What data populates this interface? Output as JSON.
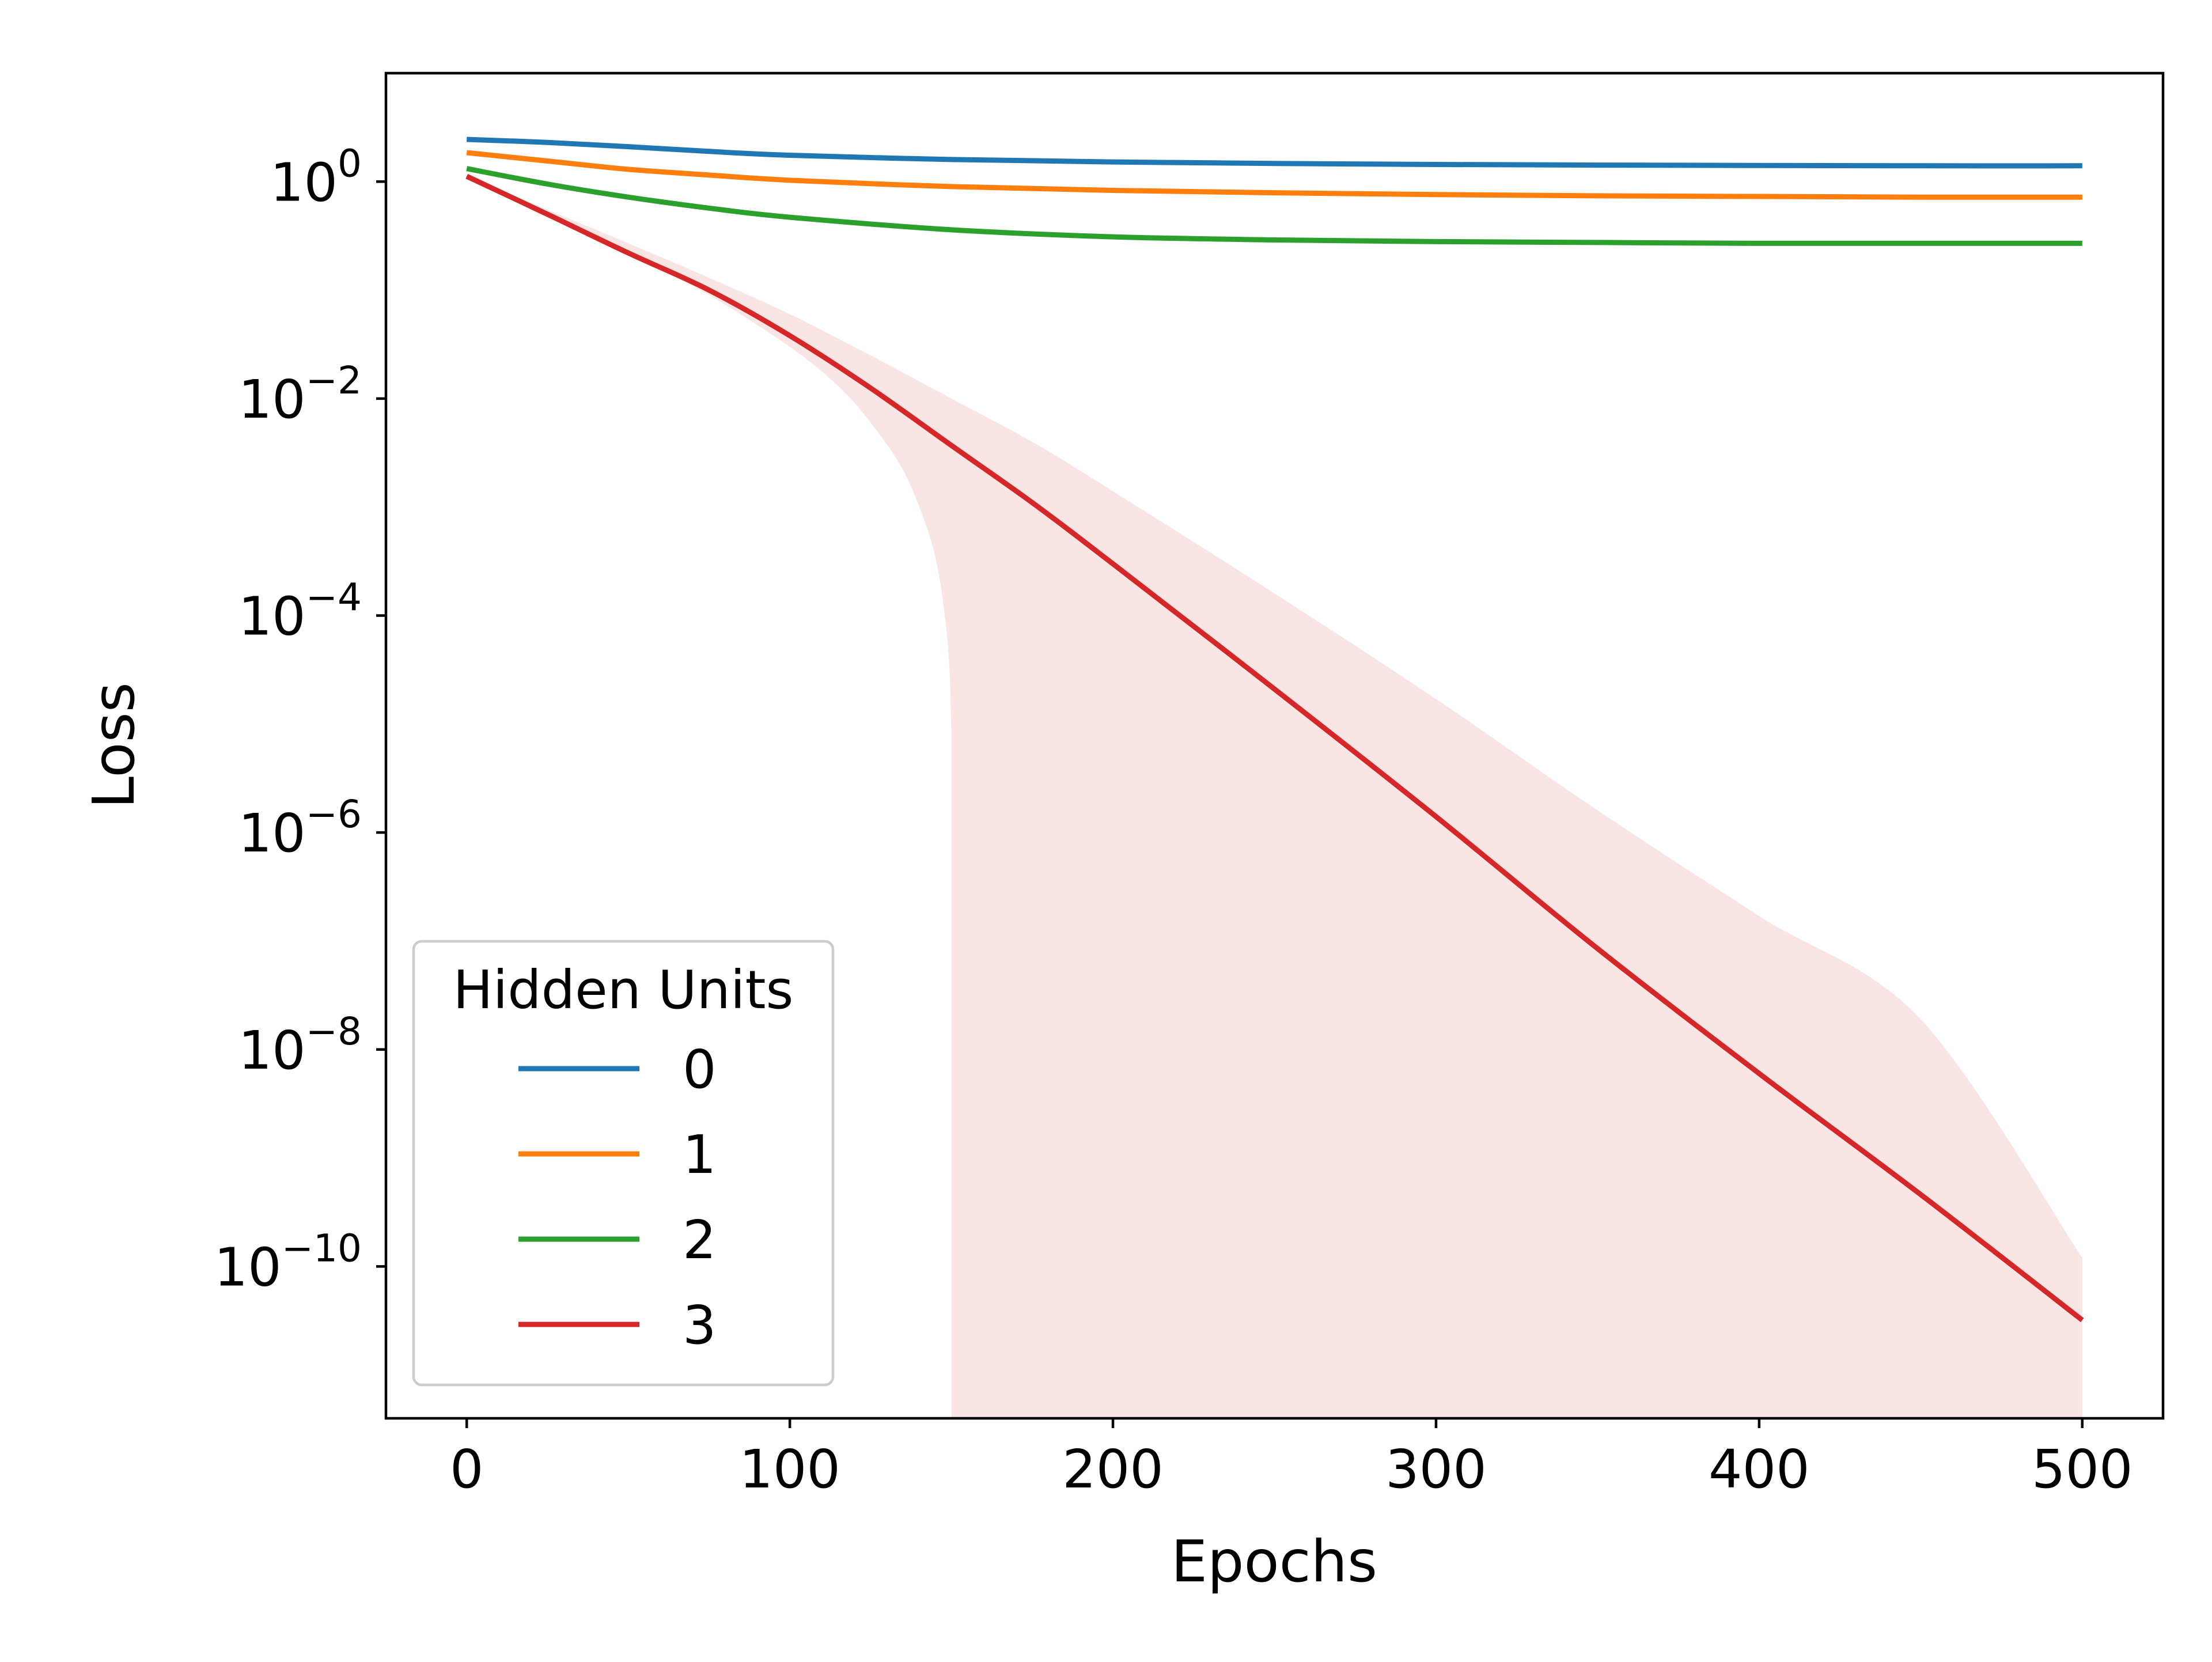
{
  "chart_data": {
    "type": "line",
    "title": "",
    "xlabel": "Epochs",
    "ylabel": "Loss",
    "x_scale": "linear",
    "y_scale": "log",
    "xlim": [
      -25,
      525
    ],
    "ylim_exponent": [
      -11.4,
      1.0
    ],
    "x_ticks": [
      {
        "value": 0,
        "label": "0"
      },
      {
        "value": 100,
        "label": "100"
      },
      {
        "value": 200,
        "label": "200"
      },
      {
        "value": 300,
        "label": "300"
      },
      {
        "value": 400,
        "label": "400"
      },
      {
        "value": 500,
        "label": "500"
      }
    ],
    "y_ticks": [
      {
        "exponent": 0,
        "base": "10",
        "sup": "0"
      },
      {
        "exponent": -2,
        "base": "10",
        "sup": "−2"
      },
      {
        "exponent": -4,
        "base": "10",
        "sup": "−4"
      },
      {
        "exponent": -6,
        "base": "10",
        "sup": "−6"
      },
      {
        "exponent": -8,
        "base": "10",
        "sup": "−8"
      },
      {
        "exponent": -10,
        "base": "10",
        "sup": "−10"
      }
    ],
    "grid": false,
    "legend": {
      "title": "Hidden Units",
      "placement": "lower-left"
    },
    "series": [
      {
        "name": "0",
        "color": "#1f77b4",
        "points": [
          [
            0,
            2.45
          ],
          [
            25,
            2.3
          ],
          [
            50,
            2.1
          ],
          [
            75,
            1.9
          ],
          [
            100,
            1.75
          ],
          [
            150,
            1.6
          ],
          [
            200,
            1.52
          ],
          [
            250,
            1.47
          ],
          [
            300,
            1.44
          ],
          [
            350,
            1.42
          ],
          [
            400,
            1.41
          ],
          [
            450,
            1.4
          ],
          [
            500,
            1.4
          ]
        ]
      },
      {
        "name": "1",
        "color": "#ff7f0e",
        "points": [
          [
            0,
            1.85
          ],
          [
            25,
            1.55
          ],
          [
            50,
            1.3
          ],
          [
            75,
            1.15
          ],
          [
            100,
            1.03
          ],
          [
            150,
            0.9
          ],
          [
            200,
            0.83
          ],
          [
            250,
            0.79
          ],
          [
            300,
            0.76
          ],
          [
            350,
            0.74
          ],
          [
            400,
            0.73
          ],
          [
            450,
            0.72
          ],
          [
            500,
            0.72
          ]
        ]
      },
      {
        "name": "2",
        "color": "#2ca02c",
        "points": [
          [
            0,
            1.32
          ],
          [
            25,
            0.95
          ],
          [
            50,
            0.72
          ],
          [
            75,
            0.57
          ],
          [
            100,
            0.47
          ],
          [
            150,
            0.36
          ],
          [
            200,
            0.31
          ],
          [
            250,
            0.29
          ],
          [
            300,
            0.28
          ],
          [
            350,
            0.275
          ],
          [
            400,
            0.27
          ],
          [
            450,
            0.27
          ],
          [
            500,
            0.27
          ]
        ]
      },
      {
        "name": "3",
        "color": "#d62728",
        "points": [
          [
            0,
            1.12
          ],
          [
            25,
            0.5
          ],
          [
            50,
            0.22
          ],
          [
            75,
            0.1
          ],
          [
            100,
            0.038
          ],
          [
            125,
            0.0125
          ],
          [
            150,
            0.0037
          ],
          [
            175,
            0.0011
          ],
          [
            200,
            0.0003
          ],
          [
            250,
            2.1e-05
          ],
          [
            300,
            1.4e-06
          ],
          [
            350,
            8.5e-08
          ],
          [
            400,
            6e-09
          ],
          [
            450,
            4.6e-10
          ],
          [
            500,
            3.2e-11
          ]
        ],
        "band": {
          "color": "#d62728",
          "upper": [
            [
              0,
              1.12
            ],
            [
              25,
              0.55
            ],
            [
              50,
              0.27
            ],
            [
              75,
              0.13
            ],
            [
              100,
              0.06
            ],
            [
              125,
              0.025
            ],
            [
              150,
              0.01
            ],
            [
              175,
              0.004
            ],
            [
              200,
              0.0014
            ],
            [
              250,
              0.00016
            ],
            [
              300,
              1.7e-05
            ],
            [
              350,
              1.6e-06
            ],
            [
              400,
              1.7e-07
            ],
            [
              450,
              1.9e-08
            ],
            [
              500,
              1.2e-10
            ]
          ],
          "lower": [
            [
              0,
              1.12
            ],
            [
              25,
              0.5
            ],
            [
              50,
              0.22
            ],
            [
              75,
              0.09
            ],
            [
              100,
              0.03
            ],
            [
              115,
              0.013
            ],
            [
              125,
              0.006
            ],
            [
              135,
              0.0022
            ],
            [
              142,
              0.0007
            ],
            [
              146,
              0.00025
            ],
            [
              149,
              5e-05
            ],
            [
              150,
              9e-06
            ]
          ]
        }
      }
    ]
  }
}
